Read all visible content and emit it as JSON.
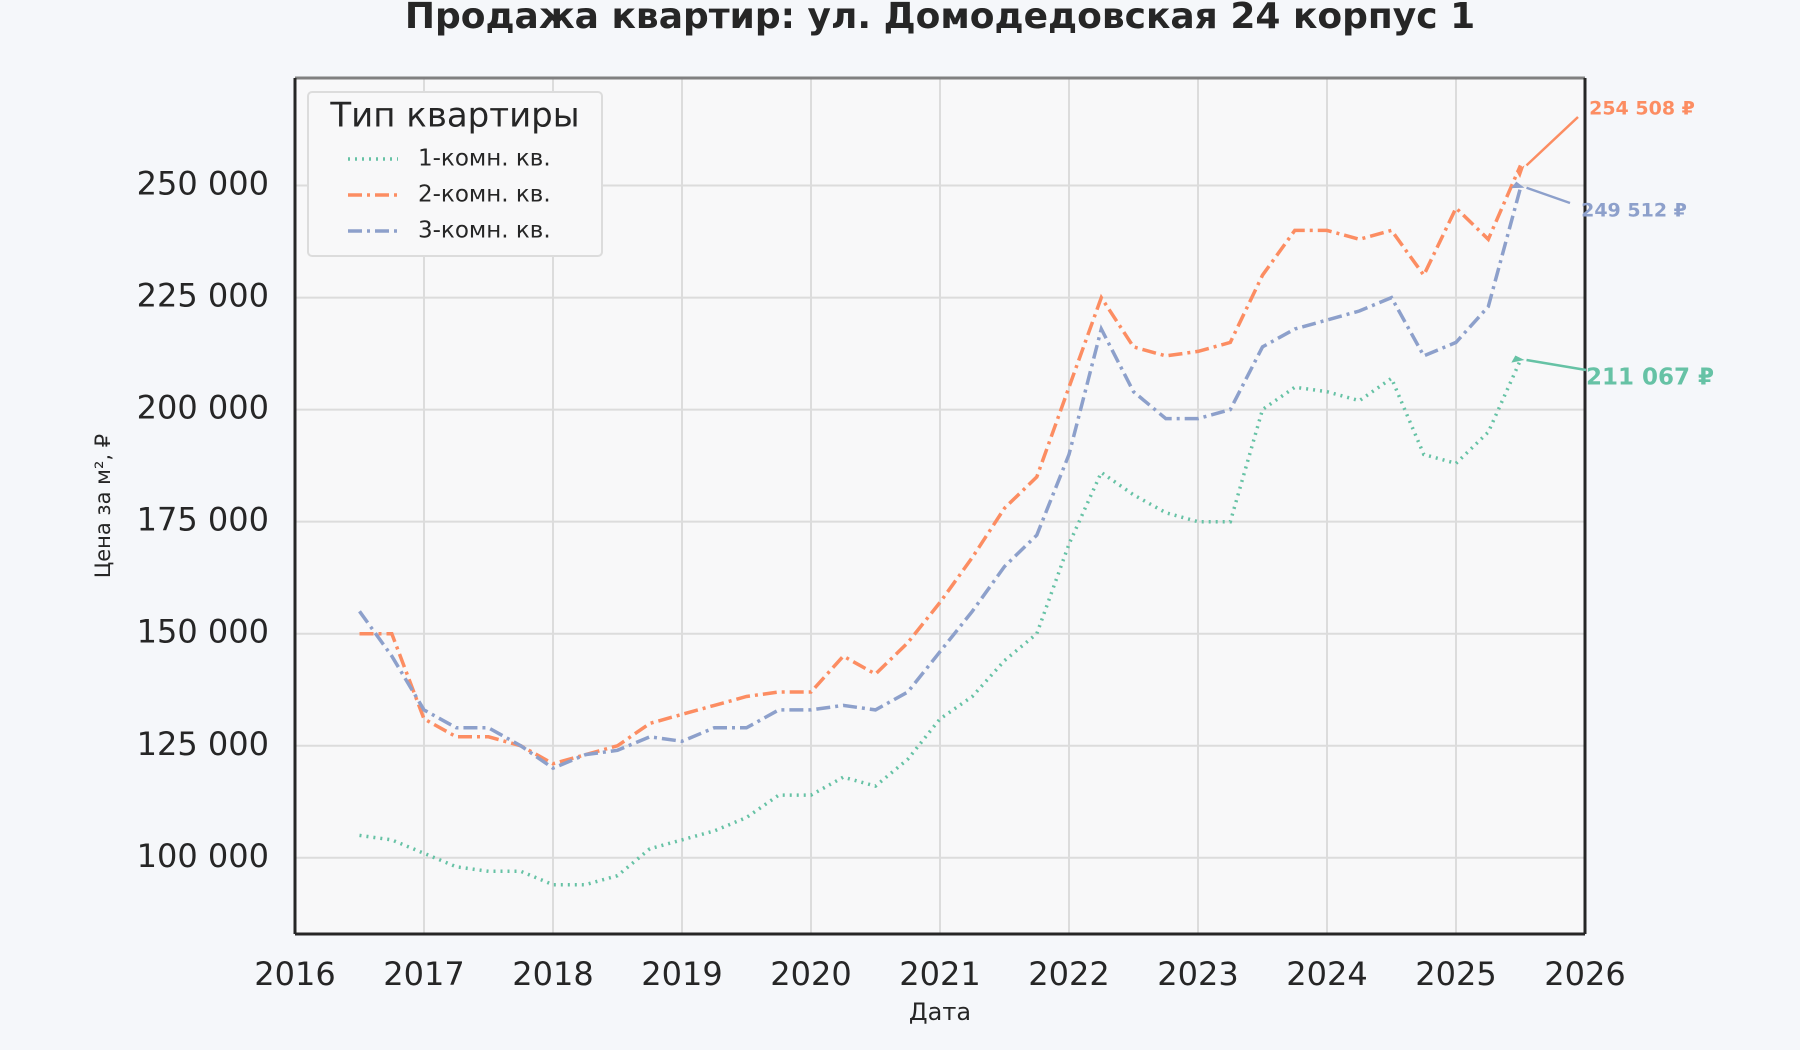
{
  "chart_data": {
    "type": "line",
    "title": "Продажа квартир: ул. Домодедовская 24 корпус 1",
    "x_label": "Дата",
    "y_label": "Цена за м², ₽",
    "legend_title": "Тип квартиры",
    "legend": "upper left",
    "grid": true,
    "x": [
      2016.5,
      2016.75,
      2017.0,
      2017.25,
      2017.5,
      2017.75,
      2018.0,
      2018.25,
      2018.5,
      2018.75,
      2019.0,
      2019.25,
      2019.5,
      2019.75,
      2020.0,
      2020.25,
      2020.5,
      2020.75,
      2021.0,
      2021.25,
      2021.5,
      2021.75,
      2022.0,
      2022.25,
      2022.5,
      2022.75,
      2023.0,
      2023.25,
      2023.5,
      2023.75,
      2024.0,
      2024.25,
      2024.5,
      2024.75,
      2025.0,
      2025.25,
      2025.5
    ],
    "series": [
      {
        "name": "1-комн. кв.",
        "color": "#66c2a5",
        "linestyle": "dotted",
        "end_label": "211 067 ₽",
        "values": [
          105000,
          104000,
          101000,
          98000,
          97000,
          97000,
          94000,
          94000,
          96000,
          102000,
          104000,
          106000,
          109000,
          114000,
          114000,
          118000,
          116000,
          122000,
          131000,
          136000,
          144000,
          150000,
          170000,
          186000,
          181000,
          177000,
          175000,
          175000,
          200000,
          205000,
          204000,
          202000,
          207000,
          190000,
          188000,
          195000,
          211067
        ]
      },
      {
        "name": "2-комн. кв.",
        "color": "#fc8d62",
        "linestyle": "dashdot",
        "end_label": "254 508 ₽",
        "values": [
          150000,
          150000,
          131000,
          127000,
          127000,
          125000,
          121000,
          123000,
          125000,
          130000,
          132000,
          134000,
          136000,
          137000,
          137000,
          145000,
          141000,
          148000,
          157000,
          167000,
          178000,
          185000,
          205000,
          225000,
          214000,
          212000,
          213000,
          215000,
          230000,
          240000,
          240000,
          238000,
          240000,
          230000,
          245000,
          238000,
          254508
        ]
      },
      {
        "name": "3-комн. кв.",
        "color": "#8da0cb",
        "linestyle": "dashdot",
        "end_label": "249 512 ₽",
        "values": [
          155000,
          145000,
          133000,
          129000,
          129000,
          125000,
          120000,
          123000,
          124000,
          127000,
          126000,
          129000,
          129000,
          133000,
          133000,
          134000,
          133000,
          137000,
          146000,
          155000,
          165000,
          172000,
          190000,
          218000,
          204000,
          198000,
          198000,
          200000,
          214000,
          218000,
          220000,
          222000,
          225000,
          212000,
          215000,
          223000,
          249512
        ]
      }
    ],
    "xlim": [
      2016,
      2026
    ],
    "xticks": [
      2016,
      2017,
      2018,
      2019,
      2020,
      2021,
      2022,
      2023,
      2024,
      2025,
      2026
    ],
    "ylim": [
      83000,
      274000
    ],
    "yticks": [
      {
        "value": 100000,
        "label": "100 000"
      },
      {
        "value": 125000,
        "label": "125 000"
      },
      {
        "value": 150000,
        "label": "150 000"
      },
      {
        "value": 175000,
        "label": "175 000"
      },
      {
        "value": 200000,
        "label": "200 000"
      },
      {
        "value": 225000,
        "label": "225 000"
      },
      {
        "value": 250000,
        "label": "250 000"
      }
    ]
  }
}
